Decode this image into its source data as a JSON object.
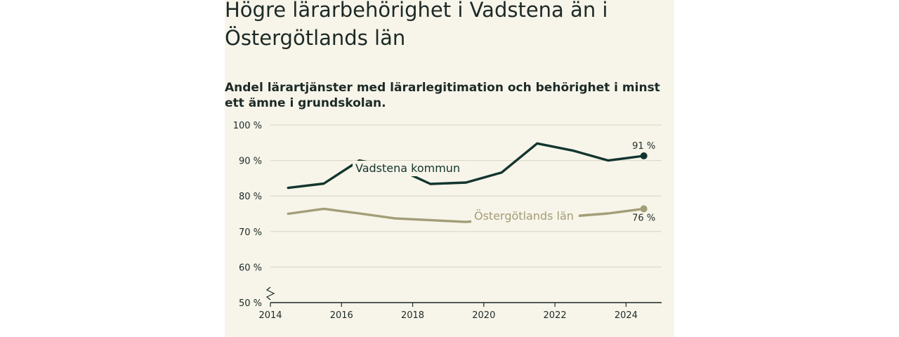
{
  "header": {
    "title": "Högre lärarbehörighet i Vadstena än i Östergötlands län",
    "subtitle": "Andel lärartjänster med lärarlegitimation och behörighet i minst ett ämne i grundskolan."
  },
  "chart_data": {
    "type": "line",
    "title": "Högre lärarbehörighet i Vadstena än i Östergötlands län",
    "subtitle": "Andel lärartjänster med lärarlegitimation och behörighet i minst ett ämne i grundskolan.",
    "xlabel": "",
    "ylabel": "",
    "x_ticks": [
      "2014",
      "2016",
      "2018",
      "2020",
      "2022",
      "2024"
    ],
    "y_ticks": [
      "50 %",
      "60 %",
      "70 %",
      "80 %",
      "90 %",
      "100 %"
    ],
    "ylim": [
      50,
      100
    ],
    "xlim": [
      2014,
      2025
    ],
    "grid": true,
    "axis_break": true,
    "x": [
      2014.5,
      2015.5,
      2016.5,
      2017.5,
      2018.5,
      2019.5,
      2020.5,
      2021.5,
      2022.5,
      2023.5,
      2024.5
    ],
    "series": [
      {
        "name": "Vadstena kommun",
        "color": "#12352e",
        "values": [
          82.3,
          83.5,
          90.0,
          88.0,
          83.4,
          83.8,
          86.6,
          94.8,
          92.8,
          90.0,
          91.3
        ],
        "end_label": "91 %"
      },
      {
        "name": "Östergötlands län",
        "color": "#a29e77",
        "values": [
          75.0,
          76.4,
          75.1,
          73.7,
          73.2,
          72.7,
          73.5,
          73.8,
          74.3,
          75.1,
          76.4
        ],
        "end_label": "76 %"
      }
    ]
  }
}
